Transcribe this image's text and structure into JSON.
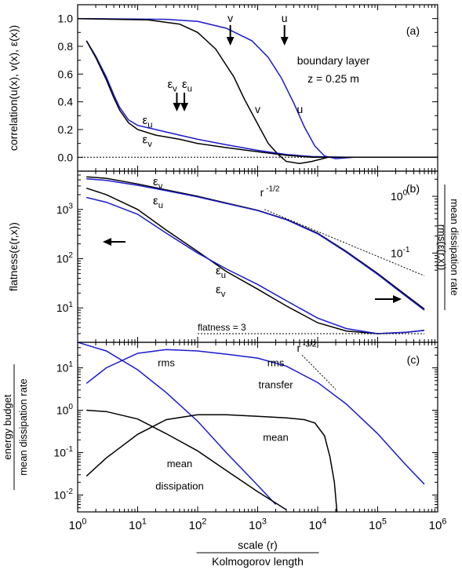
{
  "colors": {
    "black": "#000000",
    "blue": "#1a1acc"
  },
  "chart_data": [
    {
      "panel": "(a)",
      "type": "line",
      "ylabel": "correlation(u(x), v(x), ε(x))",
      "x_scale": "log",
      "xlim": [
        1,
        1000000
      ],
      "ylim": [
        -0.1,
        1.1
      ],
      "yticks": [
        "0.0",
        "0.2",
        "0.4",
        "0.6",
        "0.8",
        "1.0"
      ],
      "annotations": [
        "boundary layer",
        "z = 0.25 m"
      ],
      "arrow_labels": [
        {
          "text": "v",
          "x": 350,
          "y": 0.96
        },
        {
          "text": "u",
          "x": 2800,
          "y": 0.96
        },
        {
          "text": "εv",
          "x": 45,
          "y": 0.45
        },
        {
          "text": "εu",
          "x": 60,
          "y": 0.45
        }
      ],
      "arrows_x": [
        350,
        2800,
        45,
        60
      ],
      "curve_labels": [
        {
          "text": "v",
          "x": 900,
          "y": 0.32
        },
        {
          "text": "u",
          "x": 4500,
          "y": 0.32
        },
        {
          "text": "εu",
          "x": 12,
          "y": 0.24
        },
        {
          "text": "εv",
          "x": 12,
          "y": 0.1
        }
      ],
      "series": [
        {
          "label": "u",
          "color": "blue",
          "points": [
            [
              1,
              1.0
            ],
            [
              30,
              0.995
            ],
            [
              100,
              0.98
            ],
            [
              300,
              0.93
            ],
            [
              800,
              0.84
            ],
            [
              1500,
              0.72
            ],
            [
              2500,
              0.57
            ],
            [
              4000,
              0.39
            ],
            [
              6000,
              0.22
            ],
            [
              9000,
              0.08
            ],
            [
              13000,
              0.01
            ],
            [
              20000,
              -0.01
            ],
            [
              40000,
              0.0
            ],
            [
              1000000,
              0.0
            ]
          ]
        },
        {
          "label": "v",
          "color": "black",
          "points": [
            [
              1,
              1.0
            ],
            [
              15,
              0.99
            ],
            [
              50,
              0.96
            ],
            [
              100,
              0.9
            ],
            [
              200,
              0.78
            ],
            [
              400,
              0.58
            ],
            [
              600,
              0.42
            ],
            [
              1000,
              0.24
            ],
            [
              1500,
              0.1
            ],
            [
              2200,
              0.02
            ],
            [
              3000,
              -0.03
            ],
            [
              5000,
              -0.045
            ],
            [
              8000,
              -0.03
            ],
            [
              15000,
              0.0
            ],
            [
              1000000,
              0.0
            ]
          ]
        },
        {
          "label": "εu",
          "color": "blue",
          "points": [
            [
              1.4,
              0.84
            ],
            [
              2,
              0.73
            ],
            [
              3,
              0.58
            ],
            [
              4,
              0.45
            ],
            [
              5,
              0.36
            ],
            [
              7,
              0.27
            ],
            [
              10,
              0.23
            ],
            [
              20,
              0.2
            ],
            [
              50,
              0.16
            ],
            [
              100,
              0.13
            ],
            [
              300,
              0.09
            ],
            [
              1000,
              0.05
            ],
            [
              3000,
              0.02
            ],
            [
              8000,
              0.005
            ],
            [
              30000,
              0.0
            ],
            [
              1000000,
              0.0
            ]
          ]
        },
        {
          "label": "εv",
          "color": "black",
          "points": [
            [
              1.4,
              0.84
            ],
            [
              2,
              0.72
            ],
            [
              3,
              0.56
            ],
            [
              4,
              0.43
            ],
            [
              5,
              0.34
            ],
            [
              7,
              0.25
            ],
            [
              10,
              0.2
            ],
            [
              20,
              0.16
            ],
            [
              50,
              0.13
            ],
            [
              100,
              0.1
            ],
            [
              300,
              0.07
            ],
            [
              1000,
              0.04
            ],
            [
              3000,
              0.015
            ],
            [
              8000,
              0.0
            ],
            [
              30000,
              0.0
            ],
            [
              1000000,
              0.0
            ]
          ]
        },
        {
          "label": "zero",
          "color": "black",
          "dotted": true,
          "points": [
            [
              1,
              0.0
            ],
            [
              1000000,
              0.0
            ]
          ]
        }
      ]
    },
    {
      "panel": "(b)",
      "type": "line",
      "ylabel": "flatness(ε(r,x))",
      "ylabel_right_numerator": "rms(ε(r,x))",
      "ylabel_right_denominator": "mean dissipation rate",
      "x_scale": "log",
      "y_scale": "log",
      "xlim": [
        1,
        1000000
      ],
      "ylim": [
        2,
        6000
      ],
      "yticks_left": [
        {
          "mant": "10",
          "exp": "1",
          "v": 10
        },
        {
          "mant": "10",
          "exp": "2",
          "v": 100
        },
        {
          "mant": "10",
          "exp": "3",
          "v": 1000
        }
      ],
      "yticks_right": [
        {
          "mant": "10",
          "exp": "0",
          "v": 1
        },
        {
          "mant": "10",
          "exp": "-1",
          "v": 0.1
        }
      ],
      "right_scale_note": "right axis: 10^0 at y=1850, 10^-1 at y=130",
      "annotations": [
        "flatness = 3"
      ],
      "power_law_label": {
        "base": "r",
        "exp": "-1/2"
      },
      "curve_labels": [
        {
          "text": "εv",
          "x": 18,
          "y": 3100
        },
        {
          "text": "εu",
          "x": 18,
          "y": 1250
        },
        {
          "text": "εu",
          "x": 200,
          "y": 48
        },
        {
          "text": "εv",
          "x": 200,
          "y": 20
        }
      ],
      "series": [
        {
          "label": "rms εv",
          "color": "black",
          "points": [
            [
              1.4,
              4600
            ],
            [
              3,
              4300
            ],
            [
              10,
              3300
            ],
            [
              30,
              2500
            ],
            [
              100,
              1850
            ],
            [
              300,
              1350
            ],
            [
              1000,
              960
            ],
            [
              3000,
              630
            ],
            [
              10000,
              330
            ],
            [
              30000,
              140
            ],
            [
              100000,
              50
            ],
            [
              300000,
              18
            ],
            [
              600000,
              9.5
            ]
          ]
        },
        {
          "label": "rms εu",
          "color": "blue",
          "points": [
            [
              1.4,
              4200
            ],
            [
              3,
              3900
            ],
            [
              10,
              3100
            ],
            [
              30,
              2400
            ],
            [
              100,
              1800
            ],
            [
              300,
              1320
            ],
            [
              1000,
              950
            ],
            [
              3000,
              620
            ],
            [
              10000,
              320
            ],
            [
              30000,
              135
            ],
            [
              100000,
              48
            ],
            [
              300000,
              17
            ],
            [
              600000,
              9
            ]
          ]
        },
        {
          "label": "flatness εv",
          "color": "black",
          "points": [
            [
              1.4,
              2700
            ],
            [
              3,
              2000
            ],
            [
              10,
              1000
            ],
            [
              30,
              380
            ],
            [
              100,
              140
            ],
            [
              300,
              55
            ],
            [
              1000,
              24
            ],
            [
              3000,
              11
            ],
            [
              10000,
              5
            ],
            [
              30000,
              3.4
            ],
            [
              100000,
              3.0
            ],
            [
              300000,
              3.2
            ],
            [
              600000,
              3.5
            ]
          ]
        },
        {
          "label": "flatness εu",
          "color": "blue",
          "points": [
            [
              1.4,
              1750
            ],
            [
              3,
              1400
            ],
            [
              10,
              800
            ],
            [
              30,
              330
            ],
            [
              100,
              130
            ],
            [
              300,
              62
            ],
            [
              1000,
              30
            ],
            [
              3000,
              14
            ],
            [
              10000,
              6.2
            ],
            [
              30000,
              3.8
            ],
            [
              100000,
              3.0
            ],
            [
              300000,
              3.2
            ],
            [
              600000,
              3.5
            ]
          ]
        },
        {
          "label": "slope -1/2",
          "color": "black",
          "dotted": true,
          "points": [
            [
              1300,
              1000
            ],
            [
              600000,
              45
            ]
          ]
        },
        {
          "label": "flatness = 3",
          "color": "black",
          "dotted": true,
          "points": [
            [
              100,
              3.0
            ],
            [
              600000,
              3.0
            ]
          ]
        }
      ]
    },
    {
      "panel": "(c)",
      "type": "line",
      "ylabel_numerator": "energy budget",
      "ylabel_denominator": "mean dissipation rate",
      "xlabel_numerator": "scale (r)",
      "xlabel_denominator": "Kolmogorov length",
      "x_scale": "log",
      "y_scale": "log",
      "xlim": [
        1,
        1000000
      ],
      "ylim": [
        0.004,
        40
      ],
      "xticks": [
        {
          "mant": "10",
          "exp": "0",
          "v": 1
        },
        {
          "mant": "10",
          "exp": "1",
          "v": 10
        },
        {
          "mant": "10",
          "exp": "2",
          "v": 100
        },
        {
          "mant": "10",
          "exp": "3",
          "v": 1000
        },
        {
          "mant": "10",
          "exp": "4",
          "v": 10000
        },
        {
          "mant": "10",
          "exp": "5",
          "v": 100000
        },
        {
          "mant": "10",
          "exp": "6",
          "v": 1000000
        }
      ],
      "yticks": [
        {
          "mant": "10",
          "exp": "-2",
          "v": 0.01
        },
        {
          "mant": "10",
          "exp": "-1",
          "v": 0.1
        },
        {
          "mant": "10",
          "exp": "0",
          "v": 1
        },
        {
          "mant": "10",
          "exp": "1",
          "v": 10
        }
      ],
      "power_law_label": {
        "base": "r",
        "exp": "-3/2"
      },
      "curve_labels": [
        {
          "text": "rms",
          "x": 30,
          "y": 11
        },
        {
          "text": "rms",
          "x": 2000,
          "y": 11
        },
        {
          "text": "transfer",
          "x": 2000,
          "y": 3.3
        },
        {
          "text": "mean",
          "x": 2000,
          "y": 0.19
        },
        {
          "text": "mean",
          "x": 50,
          "y": 0.045
        },
        {
          "text": "dissipation",
          "x": 50,
          "y": 0.0135
        }
      ],
      "series": [
        {
          "label": "rms dissipation",
          "color": "blue",
          "points": [
            [
              1,
              40
            ],
            [
              3,
              25
            ],
            [
              10,
              9
            ],
            [
              30,
              2.6
            ],
            [
              100,
              0.55
            ],
            [
              300,
              0.1
            ],
            [
              1000,
              0.017
            ],
            [
              2000,
              0.006
            ]
          ]
        },
        {
          "label": "rms transfer",
          "color": "blue",
          "points": [
            [
              1.4,
              4.3
            ],
            [
              3,
              10
            ],
            [
              10,
              22
            ],
            [
              30,
              27
            ],
            [
              100,
              25
            ],
            [
              300,
              21
            ],
            [
              1000,
              17
            ],
            [
              3000,
              11
            ],
            [
              10000,
              4.5
            ],
            [
              30000,
              1.4
            ],
            [
              100000,
              0.28
            ],
            [
              300000,
              0.05
            ],
            [
              600000,
              0.018
            ]
          ]
        },
        {
          "label": "mean dissipation",
          "color": "black",
          "points": [
            [
              1.4,
              1.0
            ],
            [
              3,
              0.93
            ],
            [
              10,
              0.62
            ],
            [
              30,
              0.28
            ],
            [
              100,
              0.11
            ],
            [
              300,
              0.038
            ],
            [
              1000,
              0.012
            ],
            [
              3000,
              0.0045
            ]
          ]
        },
        {
          "label": "mean transfer",
          "color": "black",
          "points": [
            [
              1.4,
              0.028
            ],
            [
              3,
              0.075
            ],
            [
              10,
              0.27
            ],
            [
              30,
              0.6
            ],
            [
              100,
              0.78
            ],
            [
              300,
              0.78
            ],
            [
              1000,
              0.72
            ],
            [
              3000,
              0.66
            ],
            [
              6000,
              0.6
            ],
            [
              9000,
              0.5
            ],
            [
              13000,
              0.25
            ],
            [
              16000,
              0.08
            ],
            [
              19000,
              0.02
            ],
            [
              21000,
              0.004
            ]
          ]
        },
        {
          "label": "slope -3/2",
          "color": "black",
          "dotted": true,
          "points": [
            [
              5500,
              20
            ],
            [
              20000,
              3.1
            ]
          ]
        }
      ]
    }
  ]
}
